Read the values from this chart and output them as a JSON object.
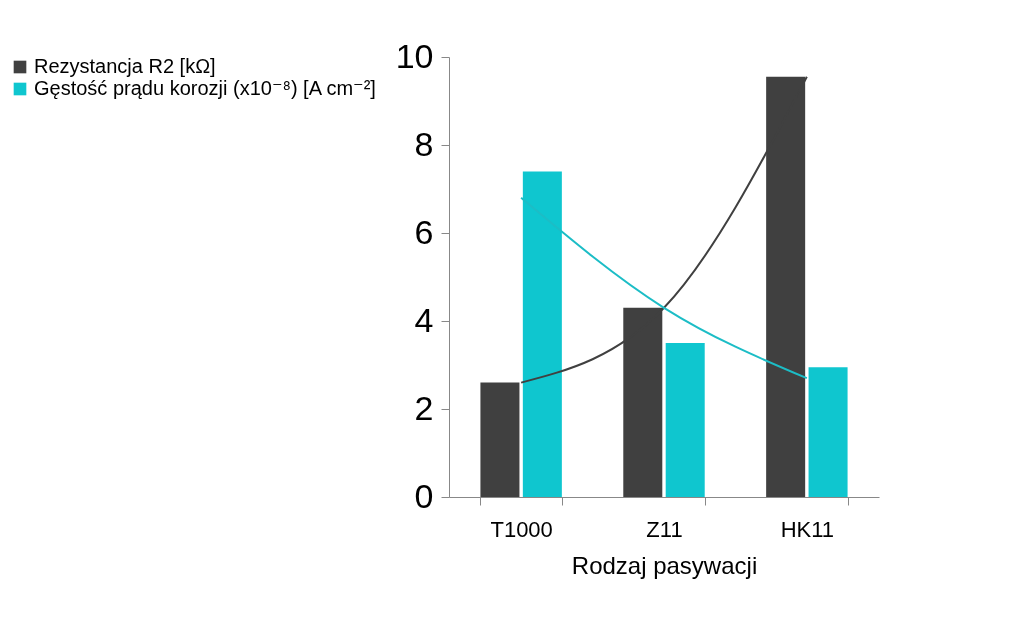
{
  "chart_data": {
    "type": "bar",
    "xlabel": "Rodzaj pasywacji",
    "categories": [
      "T1000",
      "Z11",
      "HK11"
    ],
    "series": [
      {
        "name": "Rezystancja R2 [kΩ]",
        "color": "#404040",
        "values": [
          2.6,
          4.3,
          9.55
        ]
      },
      {
        "name": "Gęstość prądu korozji (x10⁻⁸) [A cm⁻²]",
        "color": "#0fc6cf",
        "values": [
          7.4,
          3.5,
          2.95
        ]
      },
      {
        "type": "line",
        "color": "#404040",
        "x": [
          "T1000",
          "Z11",
          "HK11"
        ],
        "values": [
          2.6,
          4.3,
          9.55
        ]
      },
      {
        "type": "line",
        "color": "#1cbdc6",
        "x": [
          "T1000",
          "Z11",
          "HK11"
        ],
        "values": [
          6.8,
          4.3,
          2.7
        ]
      }
    ],
    "ylim": [
      0,
      10
    ],
    "yticks": [
      0,
      2,
      4,
      6,
      8,
      10
    ],
    "grid": false,
    "legend": "left",
    "marker": "none"
  }
}
